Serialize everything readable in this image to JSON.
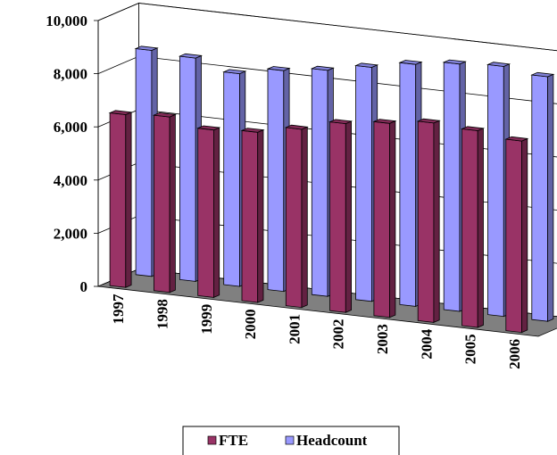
{
  "chart_data": {
    "type": "bar",
    "title": "",
    "xlabel": "",
    "ylabel": "",
    "ylim": [
      0,
      10000
    ],
    "yticks": [
      "0",
      "2,000",
      "4,000",
      "6,000",
      "8,000",
      "10,000"
    ],
    "categories": [
      "1997",
      "1998",
      "1999",
      "2000",
      "2001",
      "2002",
      "2003",
      "2004",
      "2005",
      "2006"
    ],
    "series": [
      {
        "name": "FTE",
        "color": "#993366",
        "values": [
          6500,
          6600,
          6300,
          6400,
          6700,
          7100,
          7300,
          7500,
          7400,
          7200
        ]
      },
      {
        "name": "Headcount",
        "color": "#9999ff",
        "values": [
          8500,
          8400,
          8000,
          8300,
          8500,
          8800,
          9100,
          9300,
          9400,
          9200
        ]
      }
    ],
    "grid": true,
    "legend_position": "bottom",
    "view": "3d-clustered-column"
  }
}
